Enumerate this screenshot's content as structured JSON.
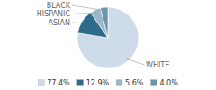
{
  "chart_data": {
    "type": "pie",
    "categories": [
      "WHITE",
      "ASIAN",
      "HISPANIC",
      "BLACK"
    ],
    "values": [
      77.4,
      12.9,
      5.6,
      4.0
    ],
    "value_labels": [
      "77.4%",
      "12.9%",
      "5.6%",
      "4.0%"
    ],
    "colors": [
      "#cddce8",
      "#2e6b8a",
      "#9ab8c8",
      "#6a94a8"
    ],
    "legend": "bottom"
  }
}
